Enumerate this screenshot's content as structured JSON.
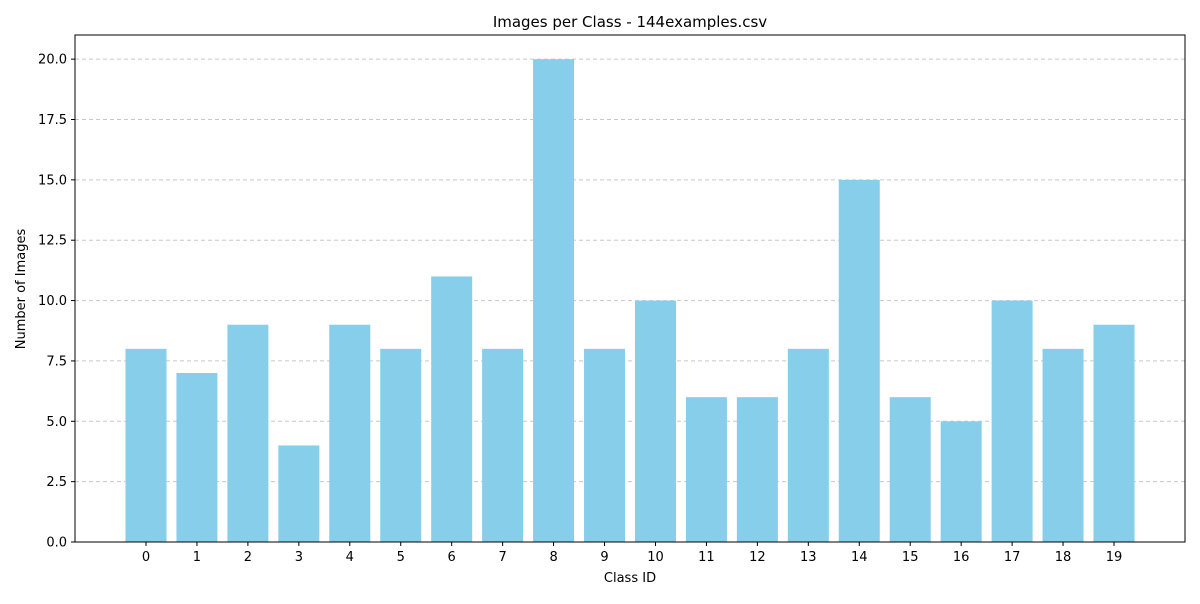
{
  "chart_data": {
    "type": "bar",
    "title": "Images per Class - 144examples.csv",
    "xlabel": "Class ID",
    "ylabel": "Number of Images",
    "categories": [
      "0",
      "1",
      "2",
      "3",
      "4",
      "5",
      "6",
      "7",
      "8",
      "9",
      "10",
      "11",
      "12",
      "13",
      "14",
      "15",
      "16",
      "17",
      "18",
      "19"
    ],
    "values": [
      8,
      7,
      9,
      4,
      9,
      8,
      11,
      8,
      20,
      8,
      10,
      6,
      6,
      8,
      15,
      6,
      5,
      10,
      8,
      9
    ],
    "ylim": [
      0,
      21
    ],
    "yticks": [
      0.0,
      2.5,
      5.0,
      7.5,
      10.0,
      12.5,
      15.0,
      17.5,
      20.0
    ],
    "ytick_labels": [
      "0.0",
      "2.5",
      "5.0",
      "7.5",
      "10.0",
      "12.5",
      "15.0",
      "17.5",
      "20.0"
    ],
    "grid": "y-dashed",
    "bar_color": "#87ceeb",
    "grid_color": "#c8c8c8"
  }
}
